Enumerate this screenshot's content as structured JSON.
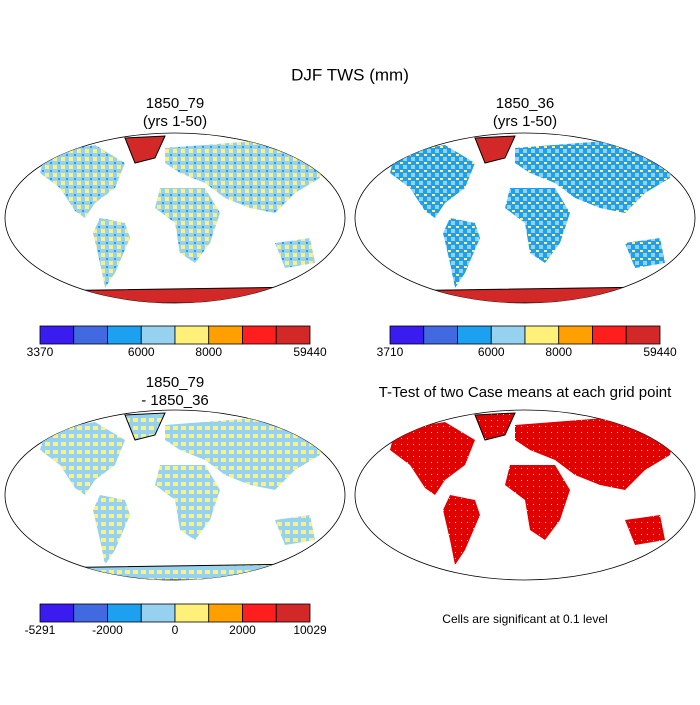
{
  "title": "DJF TWS (mm)",
  "panels": [
    {
      "title": [
        "1850_79",
        "(yrs 1-50)"
      ],
      "colorbar": {
        "colors": [
          "#3a1cf0",
          "#4169e1",
          "#1ea0f0",
          "#96d2f0",
          "#fff07a",
          "#ffa000",
          "#ff1e1e",
          "#d22828"
        ],
        "labels": [
          "3370",
          null,
          null,
          "6000",
          null,
          "8000",
          null,
          null,
          "59440"
        ]
      }
    },
    {
      "title": [
        "1850_36",
        "(yrs 1-50)"
      ],
      "colorbar": {
        "colors": [
          "#3a1cf0",
          "#4169e1",
          "#1ea0f0",
          "#96d2f0",
          "#fff07a",
          "#ffa000",
          "#ff1e1e",
          "#d22828"
        ],
        "labels": [
          "3710",
          null,
          null,
          "6000",
          null,
          "8000",
          null,
          null,
          "59440"
        ]
      }
    },
    {
      "title": [
        "1850_79",
        "- 1850_36"
      ],
      "colorbar": {
        "colors": [
          "#3a1cf0",
          "#4169e1",
          "#1ea0f0",
          "#96d2f0",
          "#fff07a",
          "#ffa000",
          "#ff1e1e",
          "#d22828"
        ],
        "labels": [
          "-5291",
          null,
          "-2000",
          null,
          "0",
          null,
          "2000",
          null,
          "10029"
        ]
      }
    },
    {
      "title": [
        "T-Test of two Case means at each grid point"
      ],
      "note": "Cells are significant at 0.1 level"
    }
  ]
}
